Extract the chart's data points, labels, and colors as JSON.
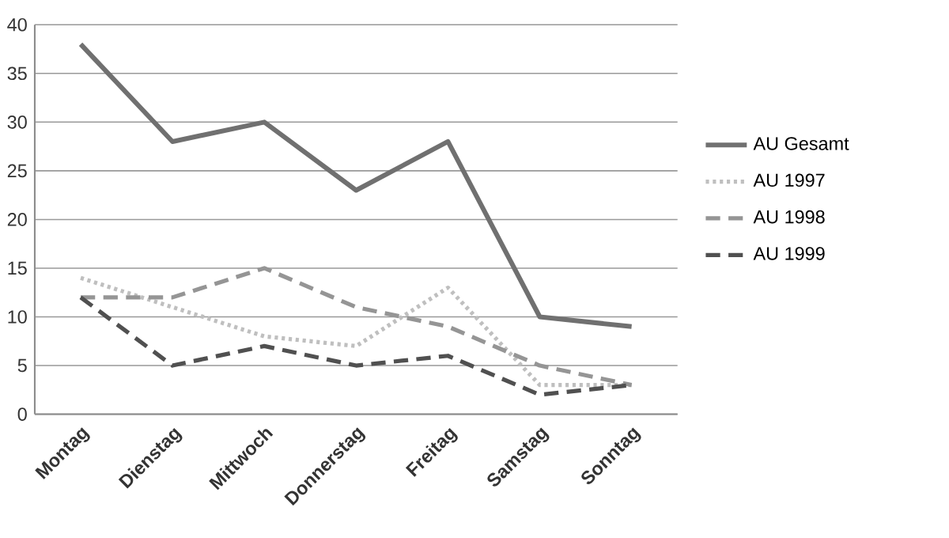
{
  "chart_data": {
    "type": "line",
    "categories": [
      "Montag",
      "Dienstag",
      "Mittwoch",
      "Donnerstag",
      "Freitag",
      "Samstag",
      "Sonntag"
    ],
    "series": [
      {
        "name": "AU Gesamt",
        "color": "#707070",
        "line_style": "solid",
        "values": [
          38,
          28,
          30,
          23,
          28,
          10,
          9
        ]
      },
      {
        "name": "AU 1997",
        "color": "#bfbfbf",
        "line_style": "dotted",
        "values": [
          14,
          11,
          8,
          7,
          13,
          3,
          3
        ]
      },
      {
        "name": "AU 1998",
        "color": "#959595",
        "line_style": "dashed",
        "values": [
          12,
          12,
          15,
          11,
          9,
          5,
          3
        ]
      },
      {
        "name": "AU 1999",
        "color": "#505050",
        "line_style": "dashed",
        "values": [
          12,
          5,
          7,
          5,
          6,
          2,
          3
        ]
      }
    ],
    "ylim": [
      0,
      40
    ],
    "yticks": [
      0,
      5,
      10,
      15,
      20,
      25,
      30,
      35,
      40
    ],
    "grid": "y",
    "legend": "right",
    "marker": "none"
  }
}
